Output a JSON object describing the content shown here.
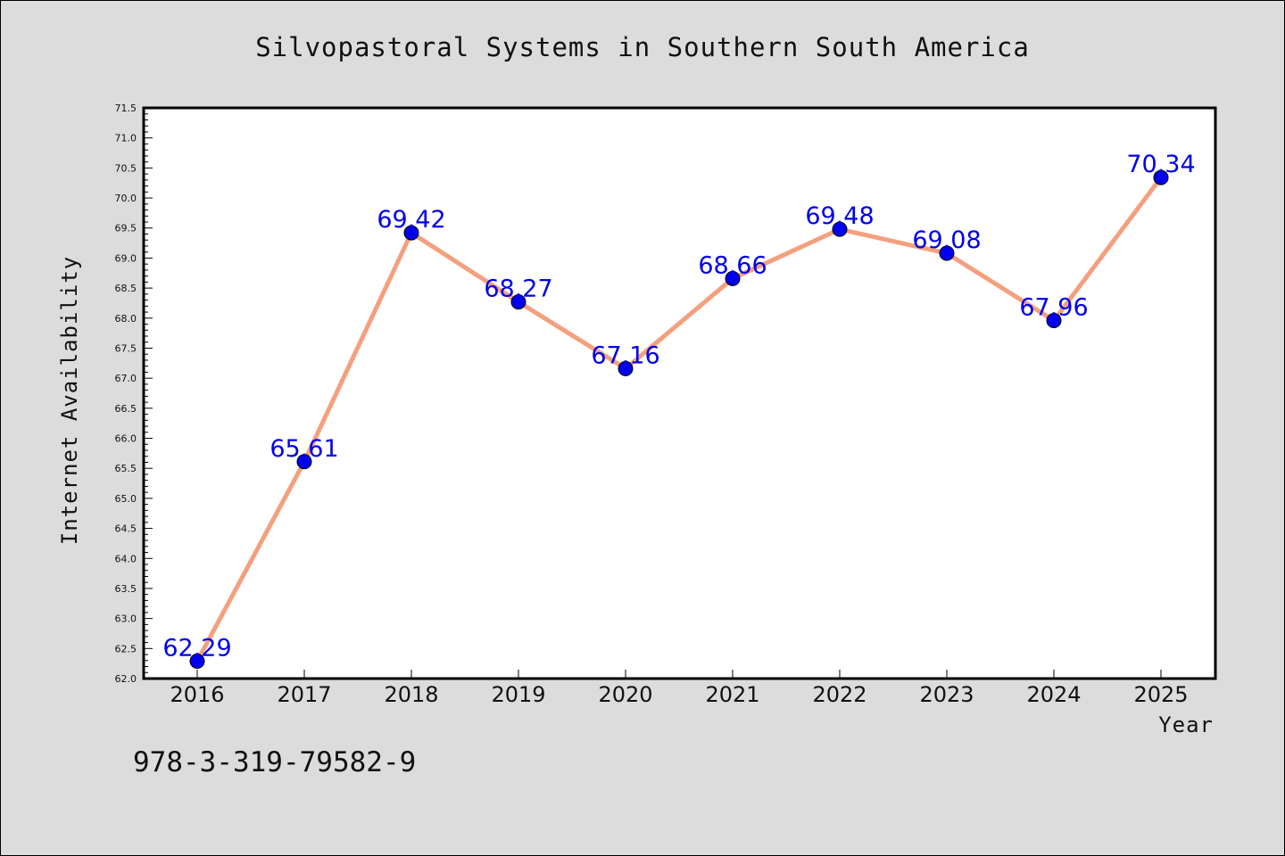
{
  "chart_data": {
    "type": "line",
    "title": "Silvopastoral Systems in Southern South America",
    "xlabel": "Year",
    "ylabel": "Internet Availability",
    "categories": [
      "2016",
      "2017",
      "2018",
      "2019",
      "2020",
      "2021",
      "2022",
      "2023",
      "2024",
      "2025"
    ],
    "series": [
      {
        "values": [
          62.29,
          65.61,
          69.42,
          68.27,
          67.16,
          68.66,
          69.48,
          69.08,
          67.96,
          70.34
        ]
      }
    ],
    "data_labels": [
      "62.29",
      "65.61",
      "69.42",
      "68.27",
      "67.16",
      "68.66",
      "69.48",
      "69.08",
      "67.96",
      "70.34"
    ],
    "ylim": [
      62.0,
      71.5
    ],
    "ytick_step": 0.5,
    "yticks": [
      "62.0",
      "62.5",
      "63.0",
      "63.5",
      "64.0",
      "64.5",
      "65.0",
      "65.5",
      "66.0",
      "66.5",
      "67.0",
      "67.5",
      "68.0",
      "68.5",
      "69.0",
      "69.5",
      "70.0",
      "70.5",
      "71.0",
      "71.5"
    ],
    "grid": false,
    "legend": "none",
    "colors": {
      "line": "#f4a07e",
      "marker": "#0000ee",
      "label": "#0000ee",
      "background": "#dcdcdc",
      "plot_background": "#ffffff"
    }
  },
  "footer": {
    "isbn": "978-3-319-79582-9"
  }
}
